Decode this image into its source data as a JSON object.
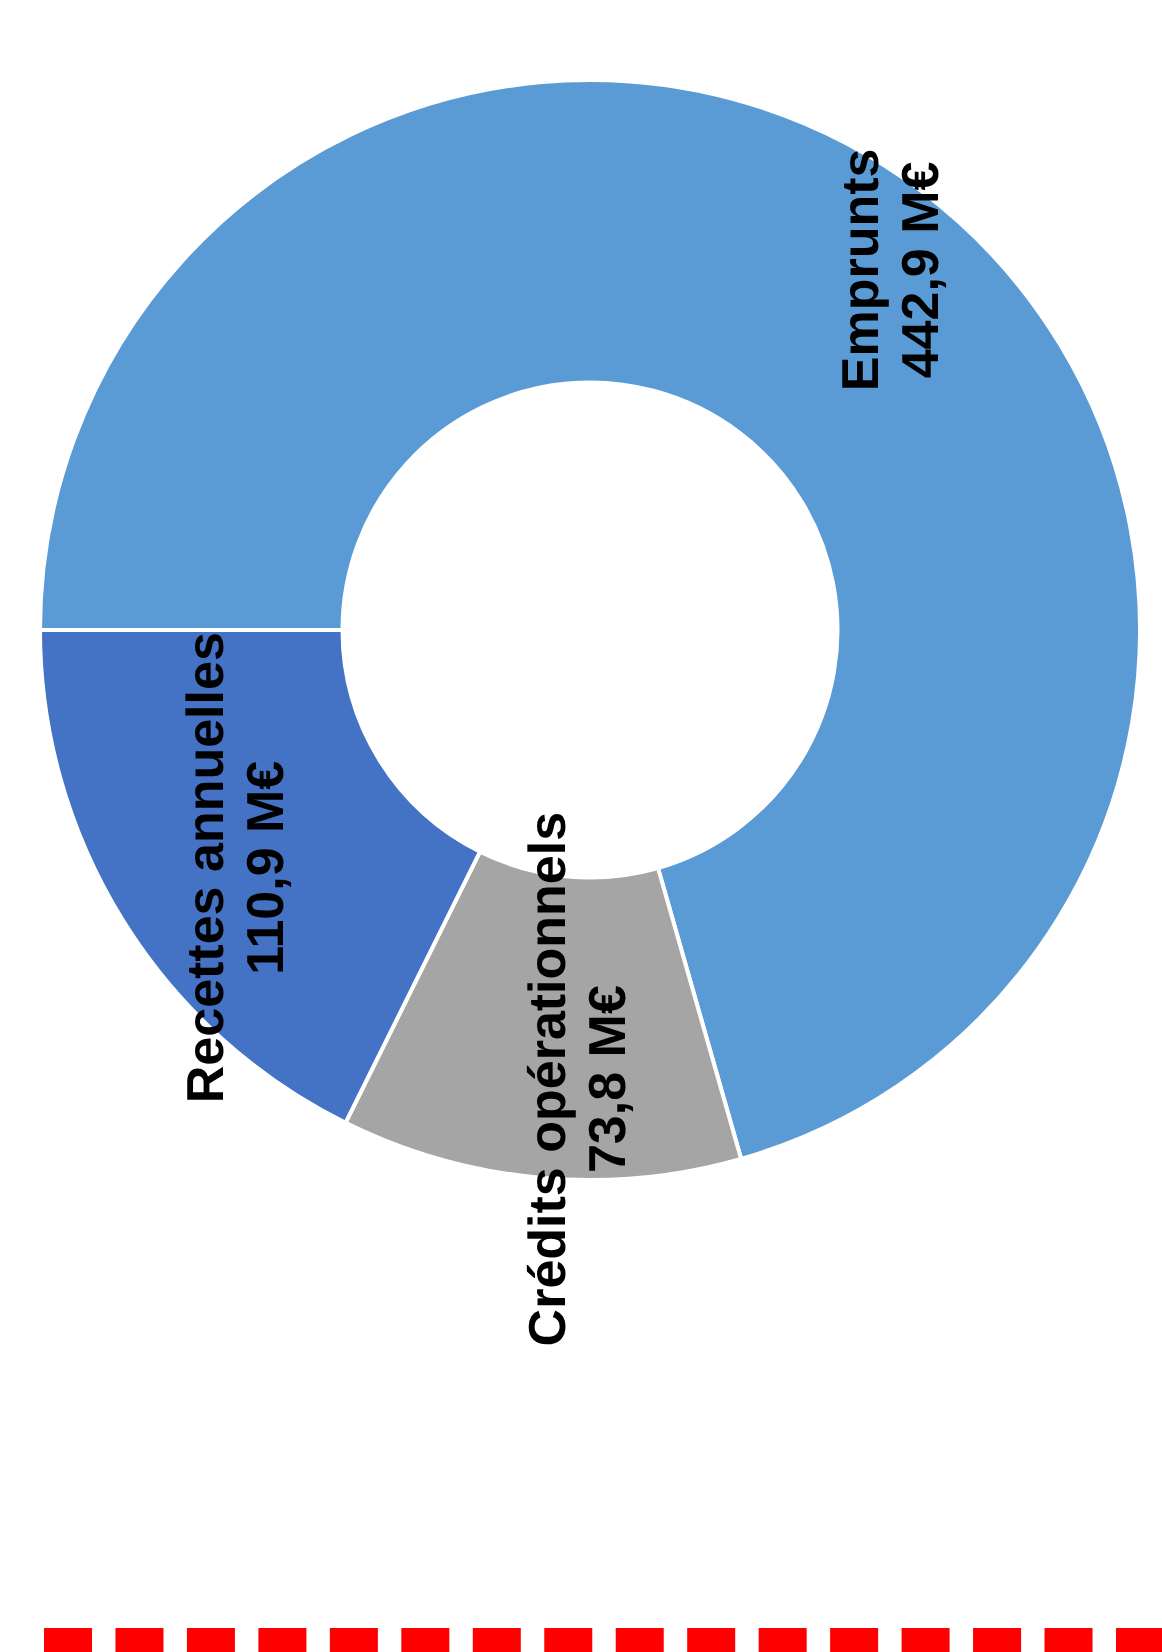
{
  "chart_data": {
    "type": "donut",
    "categories": [
      "Emprunts",
      "Crédits opérationnels",
      "Recettes annuelles"
    ],
    "values": [
      442.9,
      73.8,
      110.9
    ],
    "value_labels": [
      "442,9 M€",
      "73,8 M€",
      "110,9 M€"
    ],
    "colors": [
      "#5b9bd5",
      "#a5a5a5",
      "#4472c4"
    ]
  }
}
